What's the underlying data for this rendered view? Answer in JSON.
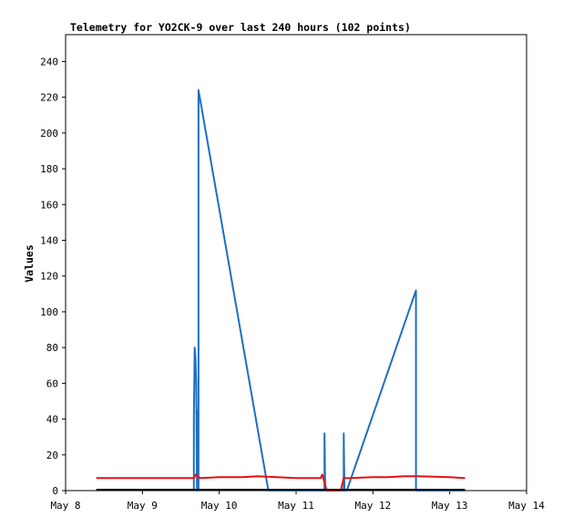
{
  "chart_data": {
    "type": "line",
    "title": "Telemetry for YO2CK-9 over last 240 hours (102 points)",
    "xlabel": "",
    "ylabel": "Values",
    "x_ticks": [
      "May 8",
      "May 9",
      "May 10",
      "May 11",
      "May 12",
      "May 13",
      "May 14"
    ],
    "y_ticks": [
      0,
      20,
      40,
      60,
      80,
      100,
      120,
      140,
      160,
      180,
      200,
      220,
      240
    ],
    "xlim_days": [
      8,
      14
    ],
    "ylim": [
      0,
      255
    ],
    "grid": false,
    "legend": "none",
    "series": [
      {
        "color": "#1f6fc0",
        "points": [
          [
            9.67,
            0
          ],
          [
            9.67,
            40
          ],
          [
            9.68,
            80
          ],
          [
            9.69,
            75
          ],
          [
            9.7,
            60
          ],
          [
            9.71,
            0
          ],
          [
            9.71,
            45
          ],
          [
            9.72,
            30
          ],
          [
            9.73,
            0
          ],
          [
            9.73,
            224
          ],
          [
            10.64,
            0
          ],
          [
            11.0,
            0
          ],
          [
            11.37,
            0
          ],
          [
            11.37,
            32
          ],
          [
            11.38,
            0
          ],
          [
            11.62,
            0
          ],
          [
            11.62,
            32
          ],
          [
            11.63,
            0
          ],
          [
            11.66,
            0
          ],
          [
            12.56,
            112
          ],
          [
            12.56,
            0
          ],
          [
            13.2,
            0
          ]
        ]
      },
      {
        "color": "#e81010",
        "points": [
          [
            8.4,
            7.0
          ],
          [
            9.0,
            7.0
          ],
          [
            9.5,
            7.0
          ],
          [
            9.67,
            7.0
          ],
          [
            9.69,
            9.0
          ],
          [
            9.75,
            7.0
          ],
          [
            10.0,
            7.5
          ],
          [
            10.3,
            7.5
          ],
          [
            10.5,
            8.0
          ],
          [
            10.75,
            7.5
          ],
          [
            11.0,
            7.0
          ],
          [
            11.32,
            7.0
          ],
          [
            11.34,
            9.0
          ],
          [
            11.36,
            6.0
          ],
          [
            11.38,
            3.0
          ],
          [
            11.4,
            0.0
          ],
          [
            11.58,
            0.0
          ],
          [
            11.62,
            7.0
          ],
          [
            11.7,
            7.0
          ],
          [
            12.0,
            7.5
          ],
          [
            12.2,
            7.5
          ],
          [
            12.4,
            8.0
          ],
          [
            12.6,
            8.0
          ],
          [
            13.0,
            7.5
          ],
          [
            13.2,
            7.0
          ]
        ]
      },
      {
        "color": "#000000",
        "points": [
          [
            8.4,
            0.5
          ],
          [
            13.2,
            0.5
          ]
        ]
      }
    ]
  }
}
